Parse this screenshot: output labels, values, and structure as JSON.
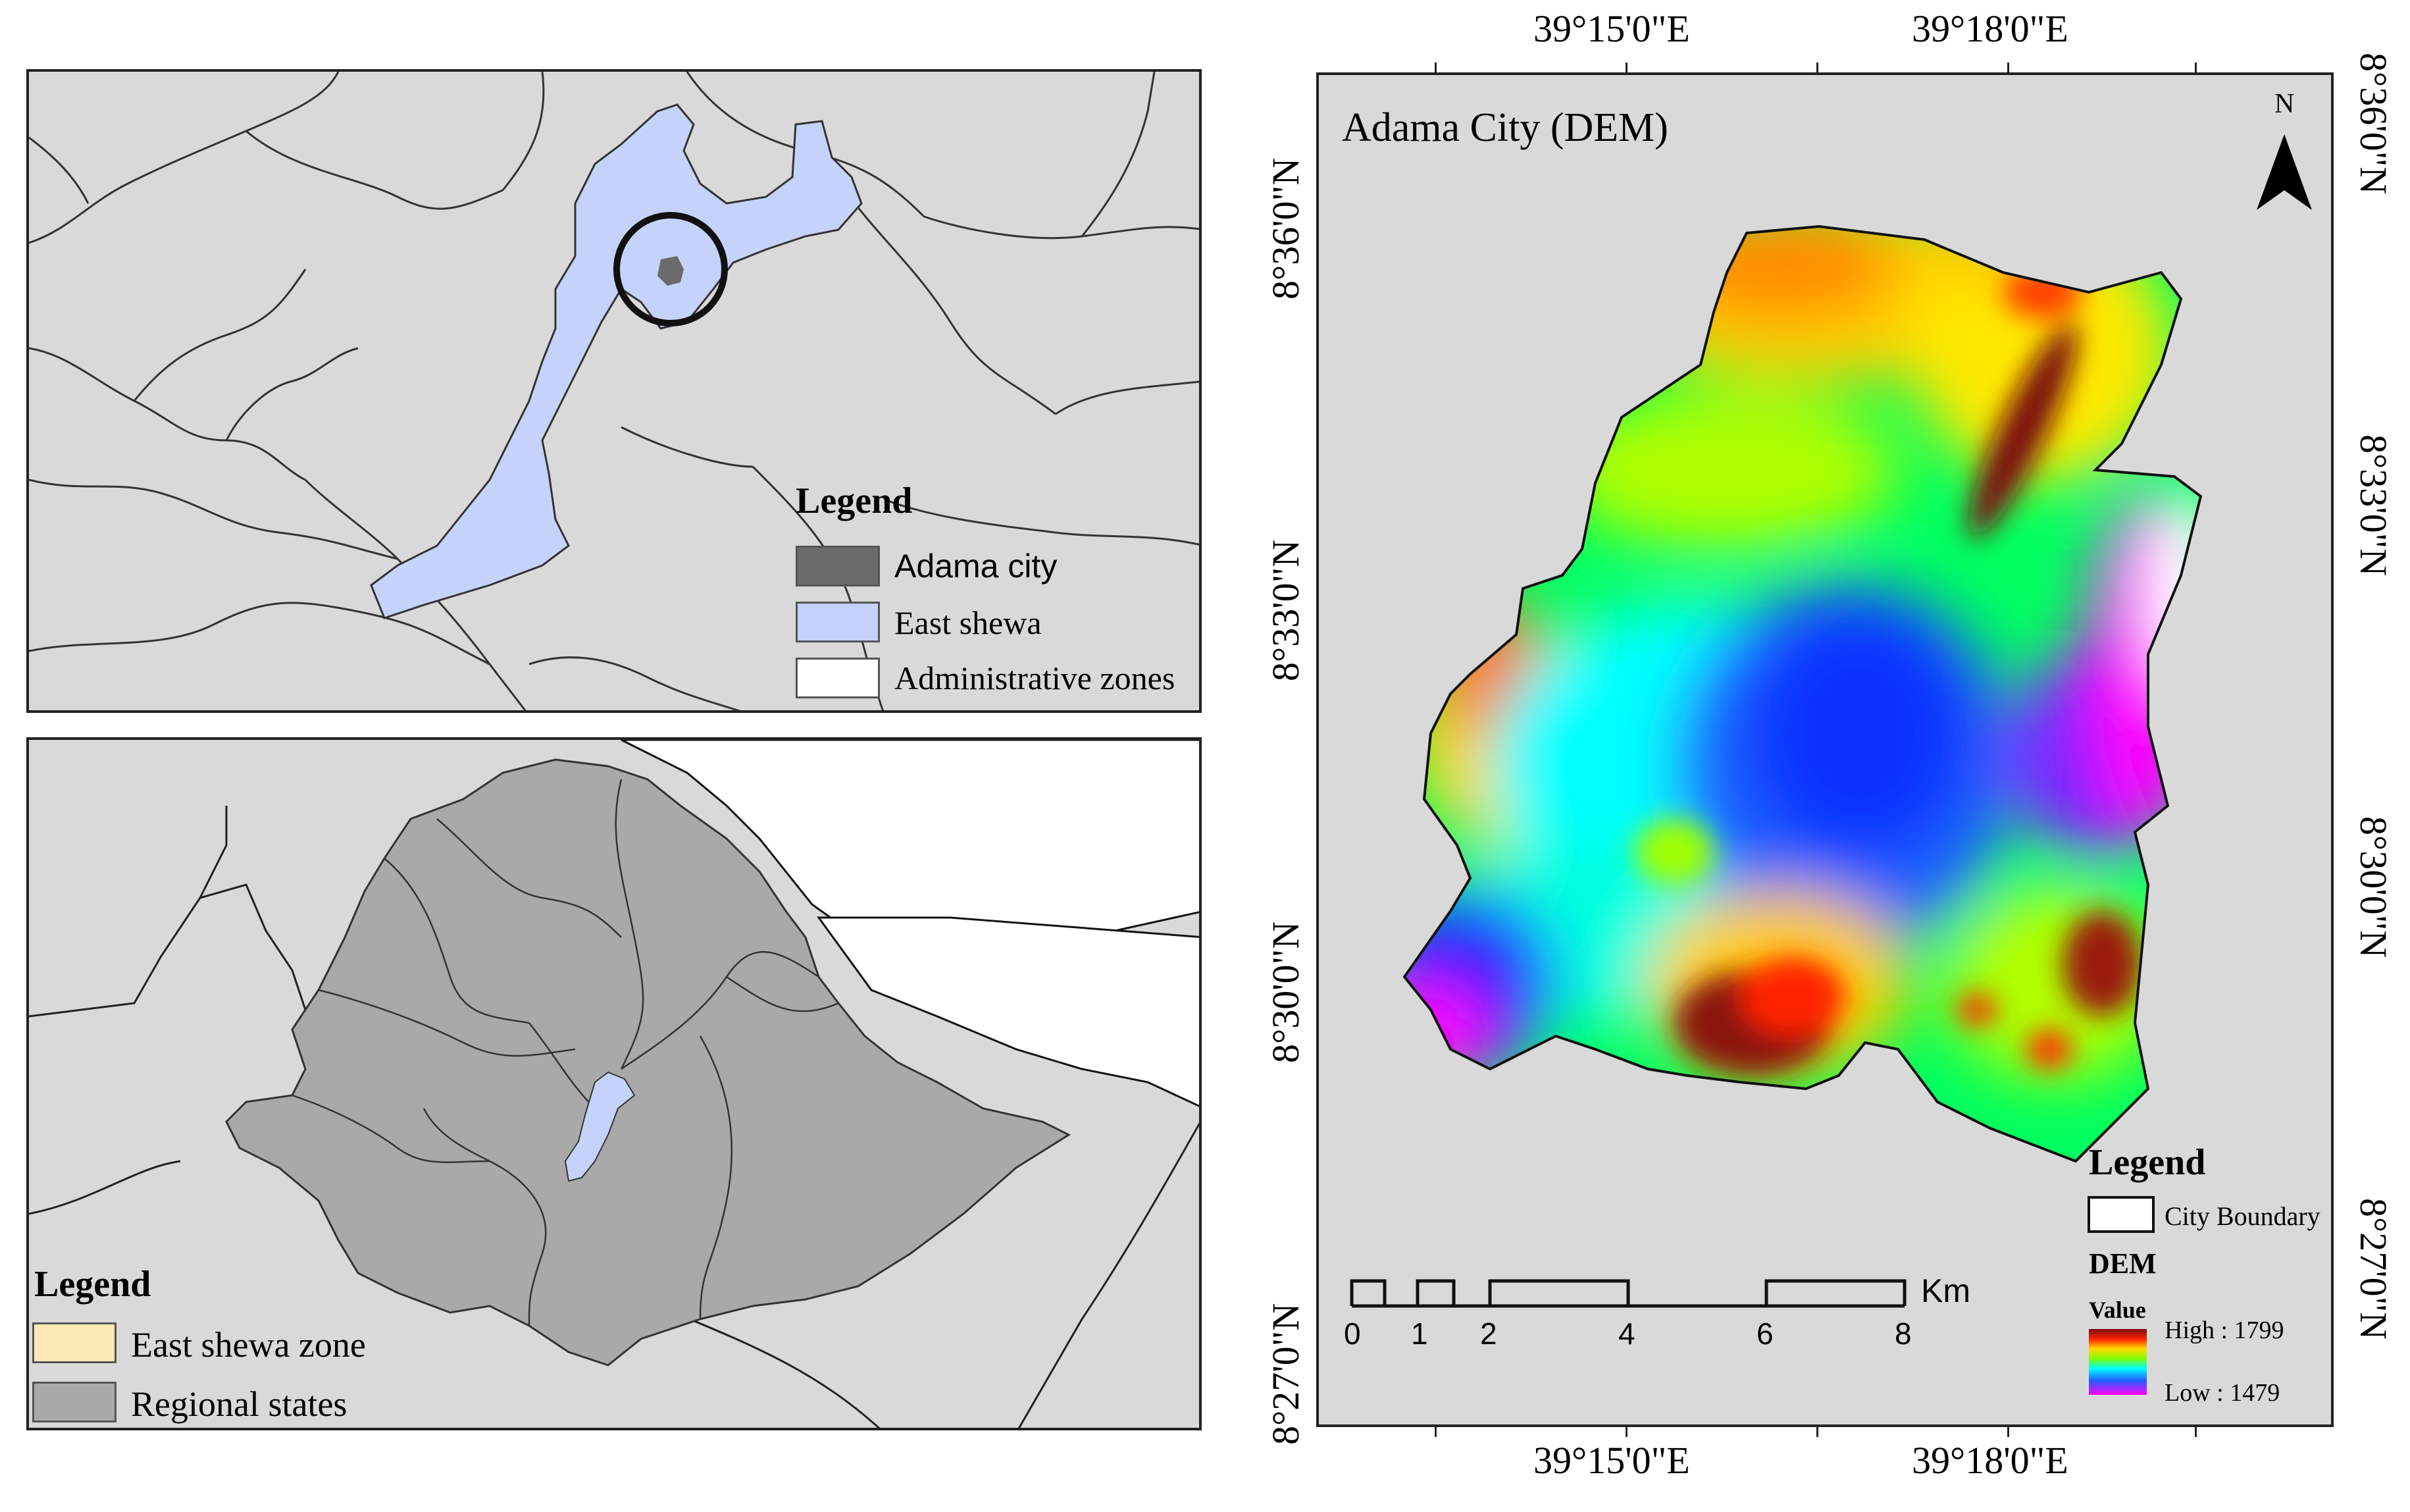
{
  "locator_map": {
    "legend": {
      "title": "Legend",
      "items": [
        {
          "label": "Adama city",
          "color": "#6b6b6b"
        },
        {
          "label": "East shewa",
          "color": "#c5d3fb"
        },
        {
          "label": "Administrative zones",
          "color": "#ffffff"
        }
      ]
    }
  },
  "ethiopia_map": {
    "legend": {
      "title": "Legend",
      "items": [
        {
          "label": "East shewa zone",
          "color": "#fde9b8"
        },
        {
          "label": "Regional states",
          "color": "#a9a9a9"
        }
      ]
    }
  },
  "dem_map": {
    "title": "Adama City (DEM)",
    "north_label": "N",
    "top_lon_labels": [
      "39°15'0\"E",
      "39°18'0\"E"
    ],
    "bottom_lon_labels": [
      "39°15'0\"E",
      "39°18'0\"E"
    ],
    "left_lat_labels": [
      "8°36'0\"N",
      "8°33'0\"N",
      "8°30'0\"N",
      "8°27'0\"N"
    ],
    "right_lat_labels": [
      "8°36'0\"N",
      "8°33'0\"N",
      "8°30'0\"N",
      "8°27'0\"N"
    ],
    "scale_bar": {
      "ticks": [
        "0",
        "1",
        "2",
        "4",
        "6",
        "8"
      ],
      "unit": "Km"
    },
    "legend": {
      "title": "Legend",
      "boundary_label": "City Boundary",
      "dem_label": "DEM",
      "value_label": "Value",
      "high_label": "High : 1799",
      "low_label": "Low : 1479"
    },
    "ramp_colors": [
      "#7a1010",
      "#ff2000",
      "#ffd800",
      "#80ff00",
      "#00ff80",
      "#00ffff",
      "#2060ff",
      "#ff00ff"
    ]
  }
}
